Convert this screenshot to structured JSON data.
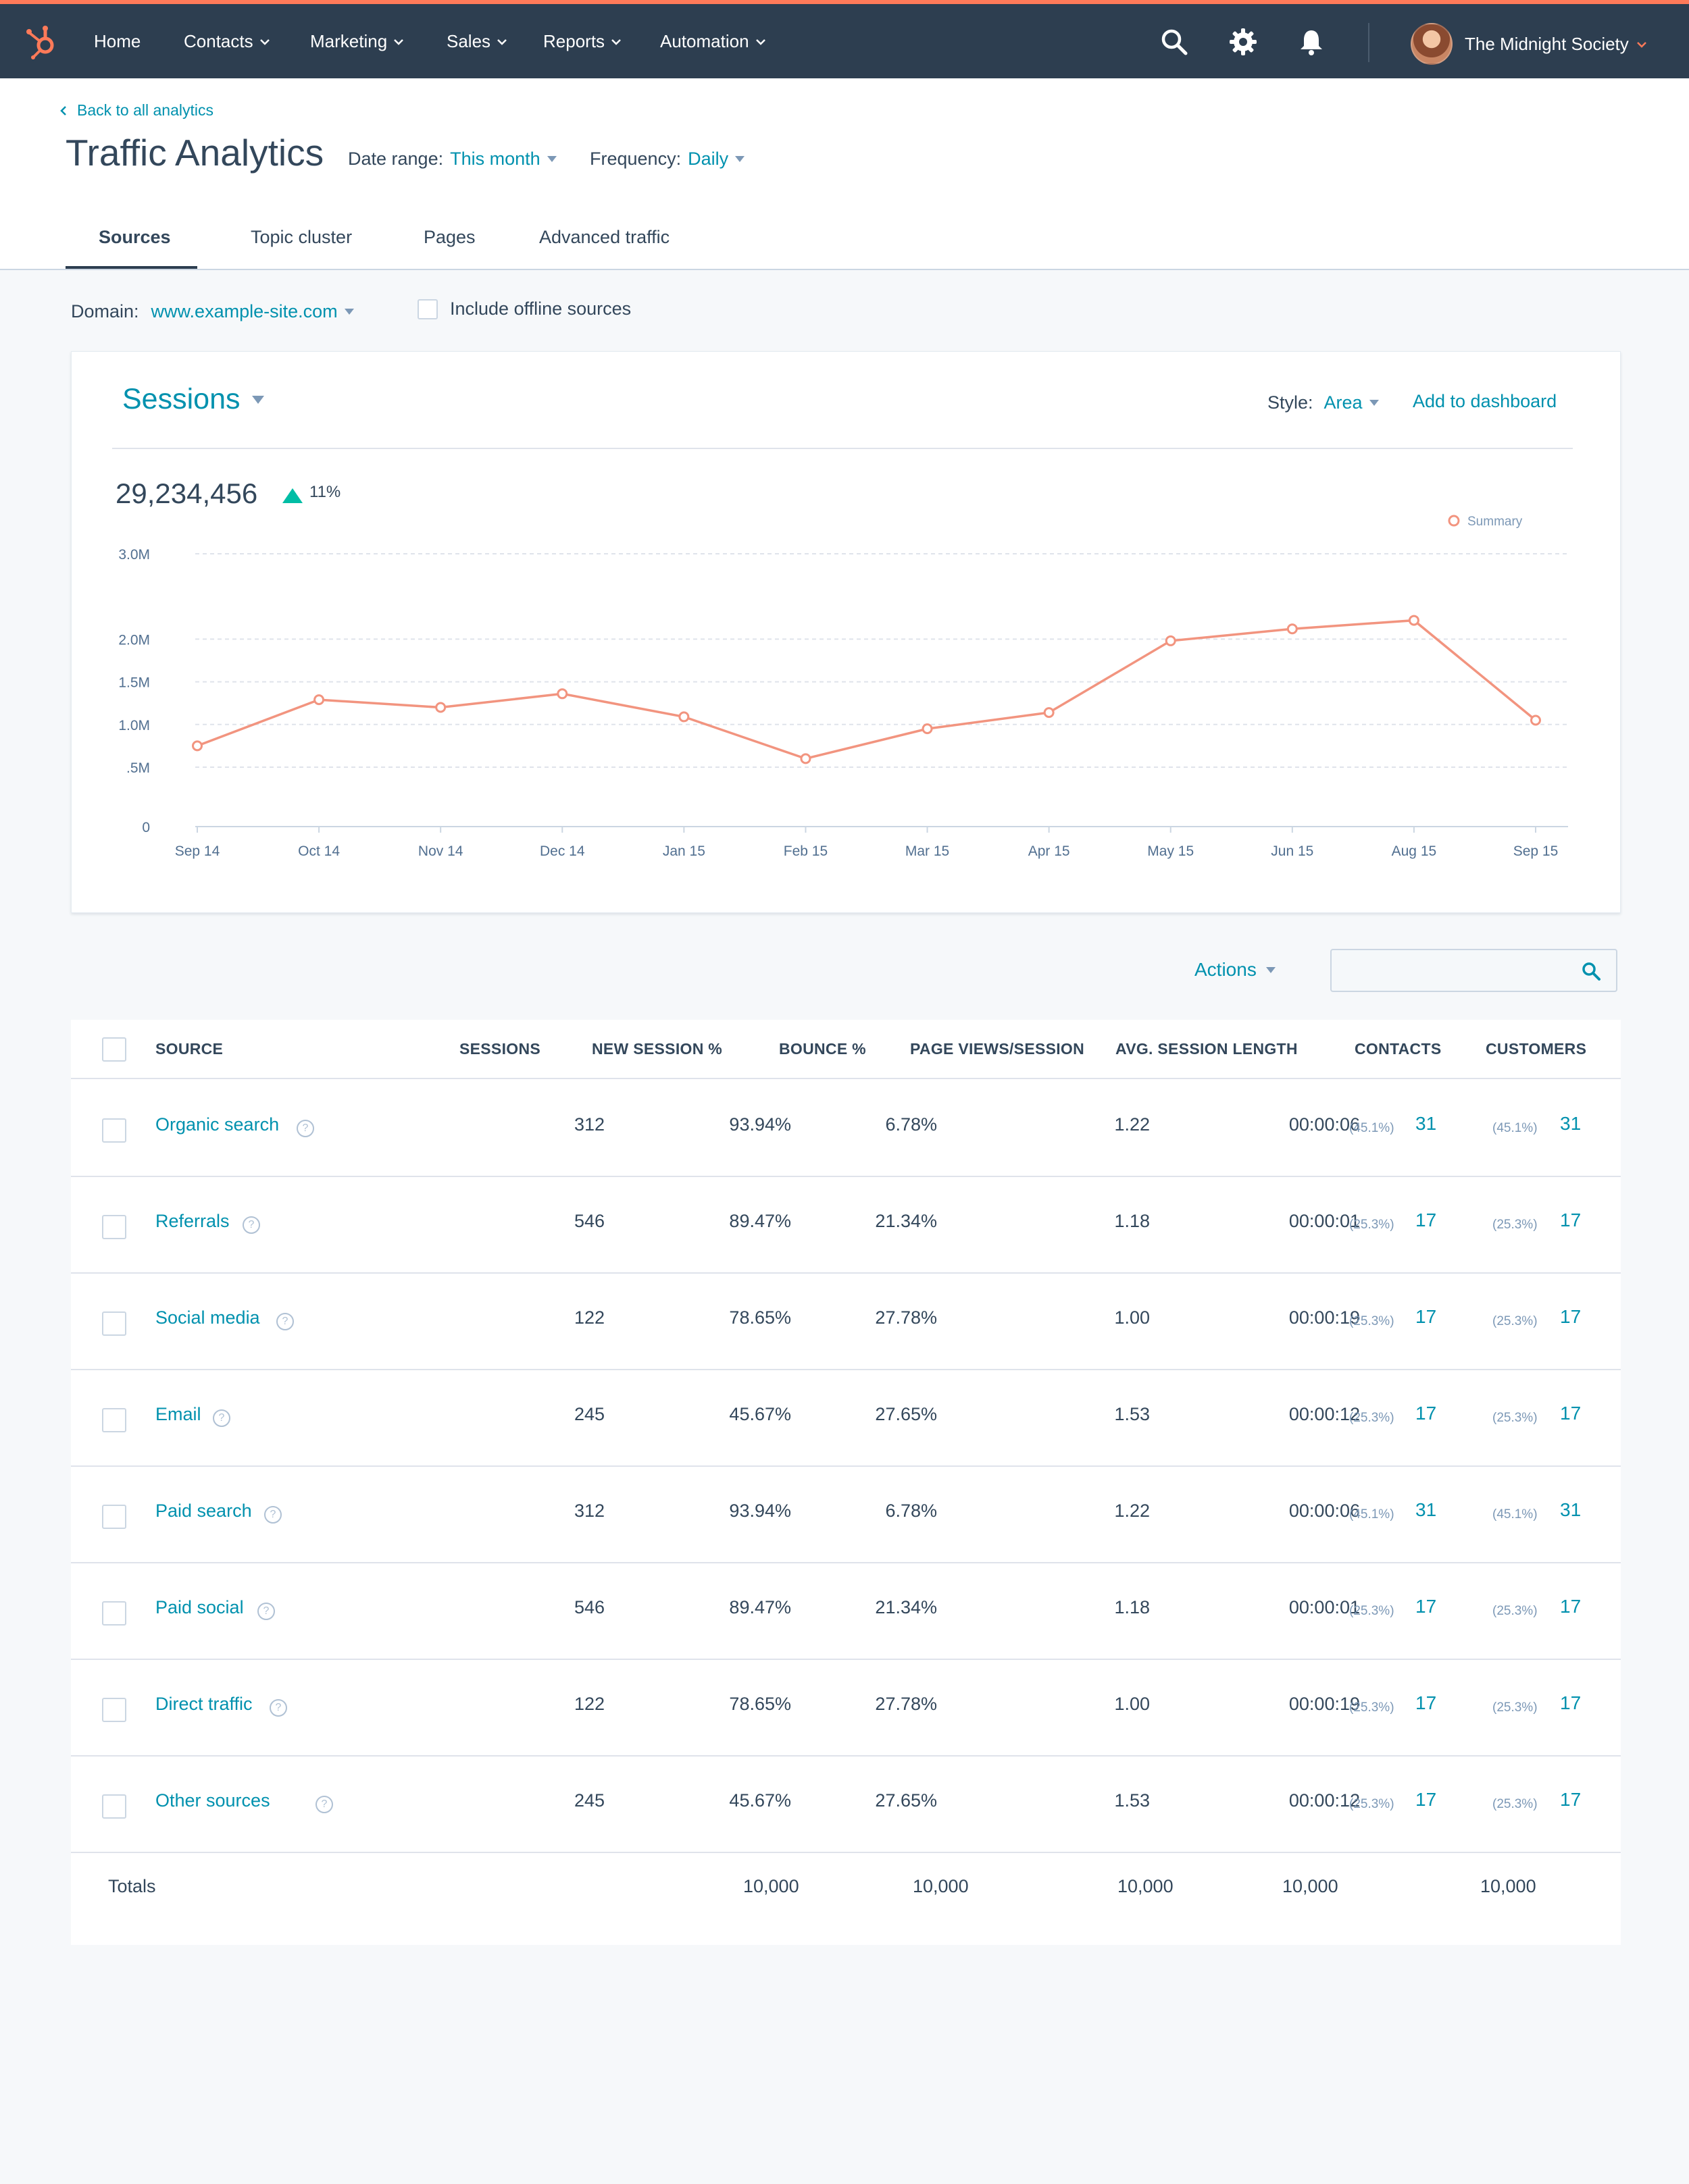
{
  "nav": {
    "items": [
      "Home",
      "Contacts",
      "Marketing",
      "Sales",
      "Reports",
      "Automation"
    ],
    "account_name": "The Midnight Society",
    "accent": "#ff7a59",
    "bar_color": "#2d3e50"
  },
  "header": {
    "back_link": "Back to all analytics",
    "title": "Traffic Analytics",
    "date_range_label": "Date range:",
    "date_range_value": "This month",
    "frequency_label": "Frequency:",
    "frequency_value": "Daily"
  },
  "tabs": [
    {
      "label": "Sources",
      "active": true
    },
    {
      "label": "Topic cluster",
      "active": false
    },
    {
      "label": "Pages",
      "active": false
    },
    {
      "label": "Advanced traffic",
      "active": false
    }
  ],
  "filters": {
    "domain_label": "Domain:",
    "domain_value": "www.example-site.com",
    "offline_label": "Include offline sources"
  },
  "chart_card": {
    "metric": "Sessions",
    "style_label": "Style:",
    "style_value": "Area",
    "add_to_dashboard": "Add to dashboard",
    "total": "29,234,456",
    "delta": "11%"
  },
  "chart_data": {
    "type": "line",
    "categories": [
      "Sep 14",
      "Oct 14",
      "Nov 14",
      "Dec 14",
      "Jan 15",
      "Feb 15",
      "Mar 15",
      "Apr 15",
      "May 15",
      "Jun 15",
      "Aug 15",
      "Sep 15"
    ],
    "series": [
      {
        "name": "Summary",
        "color": "#f2947f",
        "values": [
          0.75,
          1.29,
          1.2,
          1.36,
          1.09,
          0.6,
          0.95,
          1.14,
          1.98,
          2.12,
          2.22,
          1.05
        ]
      }
    ],
    "y_ticks": [
      {
        "value": 0,
        "label": "0"
      },
      {
        "value": 0.5,
        "label": ".5M"
      },
      {
        "value": 1.0,
        "label": "1.0M"
      },
      {
        "value": 1.5,
        "label": "1.5M"
      },
      {
        "value": 2.0,
        "label": "2.0M"
      },
      {
        "value": 3.0,
        "label": "3.0M"
      }
    ],
    "ylim": [
      0,
      3.0
    ],
    "grid": true,
    "legend_position": "top-right"
  },
  "actions": {
    "label": "Actions",
    "search_placeholder": ""
  },
  "table": {
    "columns": [
      "SOURCE",
      "SESSIONS",
      "NEW SESSION %",
      "BOUNCE %",
      "PAGE VIEWS/SESSION",
      "AVG. SESSION LENGTH",
      "CONTACTS",
      "CUSTOMERS"
    ],
    "rows": [
      {
        "source": "Organic search",
        "sessions": "312",
        "new_session": "93.94%",
        "bounce": "6.78%",
        "pvs": "1.22",
        "avg_len": "00:00:06",
        "contacts_pct": "(45.1%)",
        "contacts": "31",
        "customers_pct": "(45.1%)",
        "customers": "31"
      },
      {
        "source": "Referrals",
        "sessions": "546",
        "new_session": "89.47%",
        "bounce": "21.34%",
        "pvs": "1.18",
        "avg_len": "00:00:01",
        "contacts_pct": "(25.3%)",
        "contacts": "17",
        "customers_pct": "(25.3%)",
        "customers": "17"
      },
      {
        "source": "Social media",
        "sessions": "122",
        "new_session": "78.65%",
        "bounce": "27.78%",
        "pvs": "1.00",
        "avg_len": "00:00:19",
        "contacts_pct": "(25.3%)",
        "contacts": "17",
        "customers_pct": "(25.3%)",
        "customers": "17"
      },
      {
        "source": "Email",
        "sessions": "245",
        "new_session": "45.67%",
        "bounce": "27.65%",
        "pvs": "1.53",
        "avg_len": "00:00:12",
        "contacts_pct": "(25.3%)",
        "contacts": "17",
        "customers_pct": "(25.3%)",
        "customers": "17"
      },
      {
        "source": "Paid search",
        "sessions": "312",
        "new_session": "93.94%",
        "bounce": "6.78%",
        "pvs": "1.22",
        "avg_len": "00:00:06",
        "contacts_pct": "(45.1%)",
        "contacts": "31",
        "customers_pct": "(45.1%)",
        "customers": "31"
      },
      {
        "source": "Paid social",
        "sessions": "546",
        "new_session": "89.47%",
        "bounce": "21.34%",
        "pvs": "1.18",
        "avg_len": "00:00:01",
        "contacts_pct": "(25.3%)",
        "contacts": "17",
        "customers_pct": "(25.3%)",
        "customers": "17"
      },
      {
        "source": "Direct traffic",
        "sessions": "122",
        "new_session": "78.65%",
        "bounce": "27.78%",
        "pvs": "1.00",
        "avg_len": "00:00:19",
        "contacts_pct": "(25.3%)",
        "contacts": "17",
        "customers_pct": "(25.3%)",
        "customers": "17"
      },
      {
        "source": "Other sources",
        "sessions": "245",
        "new_session": "45.67%",
        "bounce": "27.65%",
        "pvs": "1.53",
        "avg_len": "00:00:12",
        "contacts_pct": "(25.3%)",
        "contacts": "17",
        "customers_pct": "(25.3%)",
        "customers": "17"
      }
    ],
    "totals_label": "Totals",
    "totals": [
      "10,000",
      "10,000",
      "10,000",
      "10,000",
      "10,000"
    ]
  }
}
